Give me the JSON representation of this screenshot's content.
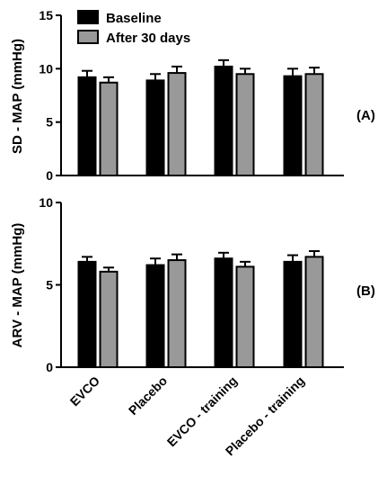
{
  "colors": {
    "baseline": "#000000",
    "after": "#999999",
    "axis": "#000000",
    "outline": "#000000"
  },
  "chart_data": [
    {
      "type": "bar",
      "panel_label": "(A)",
      "ylabel": "SD - MAP (mmHg)",
      "ylim": [
        0,
        15
      ],
      "yticks": [
        "0",
        "5",
        "10",
        "15"
      ],
      "categories": [
        "EVCO",
        "Placebo",
        "EVCO - training",
        "Placebo - training"
      ],
      "series": [
        {
          "name": "Baseline",
          "values": [
            9.2,
            8.9,
            10.2,
            9.3
          ],
          "errors": [
            0.6,
            0.6,
            0.6,
            0.7
          ]
        },
        {
          "name": "After 30 days",
          "values": [
            8.7,
            9.6,
            9.5,
            9.5
          ],
          "errors": [
            0.5,
            0.6,
            0.5,
            0.6
          ]
        }
      ],
      "legend": "top-left",
      "grid": false
    },
    {
      "type": "bar",
      "panel_label": "(B)",
      "ylabel": "ARV - MAP (mmHg)",
      "ylim": [
        0,
        10
      ],
      "yticks": [
        "0",
        "5",
        "10"
      ],
      "categories": [
        "EVCO",
        "Placebo",
        "EVCO - training",
        "Placebo - training"
      ],
      "series": [
        {
          "name": "Baseline",
          "values": [
            6.4,
            6.2,
            6.6,
            6.4
          ],
          "errors": [
            0.3,
            0.4,
            0.35,
            0.4
          ]
        },
        {
          "name": "After 30 days",
          "values": [
            5.8,
            6.5,
            6.1,
            6.7
          ],
          "errors": [
            0.25,
            0.35,
            0.3,
            0.35
          ]
        }
      ],
      "grid": false
    }
  ]
}
